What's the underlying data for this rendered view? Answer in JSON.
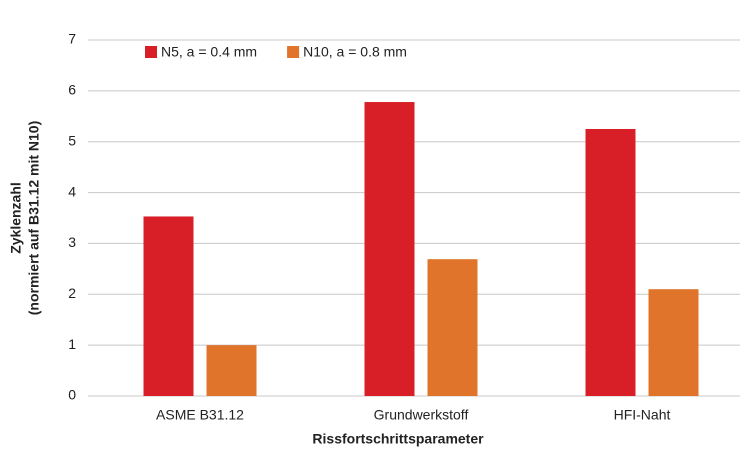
{
  "chart_data": {
    "type": "bar",
    "y_label": [
      "Zyklenzahl",
      "(normiert auf B31.12 mit N10)"
    ],
    "x_label": "Rissfortschrittsparameter",
    "categories": [
      "ASME B31.12",
      "Grundwerkstoff",
      "HFI-Naht"
    ],
    "series": [
      {
        "name": "N5, a = 0.4 mm",
        "color": "#d81e26",
        "values": [
          3.53,
          5.78,
          5.25
        ]
      },
      {
        "name": "N10, a = 0.8 mm",
        "color": "#e0742a",
        "values": [
          1.0,
          2.69,
          2.1
        ]
      }
    ],
    "ylim": [
      0,
      7
    ],
    "yticks": [
      0,
      1,
      2,
      3,
      4,
      5,
      6,
      7
    ],
    "grid": true,
    "legend": "top-left"
  }
}
